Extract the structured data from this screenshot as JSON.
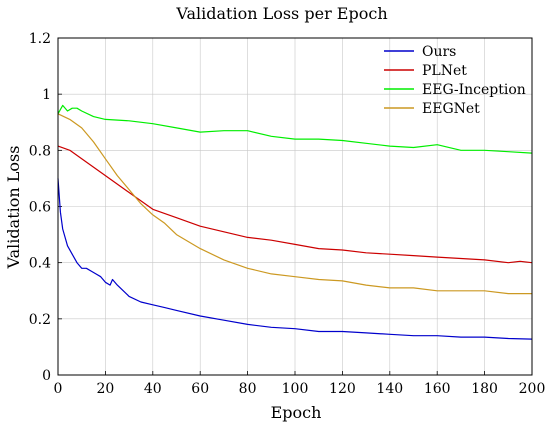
{
  "chart_data": {
    "type": "line",
    "title": "Validation Loss per Epoch",
    "xlabel": "Epoch",
    "ylabel": "Validation Loss",
    "xlim": [
      0,
      200
    ],
    "ylim": [
      0,
      1.2
    ],
    "xticks": [
      "0",
      "20",
      "40",
      "60",
      "80",
      "100",
      "120",
      "140",
      "160",
      "180",
      "200"
    ],
    "yticks": [
      "0",
      "0.2",
      "0.4",
      "0.6",
      "0.8",
      "1",
      "1.2"
    ],
    "grid": true,
    "legend_position": "top-right",
    "series": [
      {
        "name": "Ours",
        "color": "#0000cc",
        "x": [
          0,
          1,
          2,
          4,
          6,
          8,
          10,
          12,
          14,
          16,
          18,
          20,
          22,
          23,
          25,
          30,
          35,
          40,
          45,
          50,
          60,
          70,
          80,
          90,
          100,
          110,
          120,
          130,
          140,
          150,
          160,
          170,
          180,
          190,
          200
        ],
        "y": [
          0.7,
          0.58,
          0.52,
          0.46,
          0.43,
          0.4,
          0.38,
          0.38,
          0.37,
          0.36,
          0.35,
          0.33,
          0.32,
          0.34,
          0.32,
          0.28,
          0.26,
          0.25,
          0.24,
          0.23,
          0.21,
          0.195,
          0.18,
          0.17,
          0.165,
          0.155,
          0.155,
          0.15,
          0.145,
          0.14,
          0.14,
          0.135,
          0.135,
          0.13,
          0.128
        ]
      },
      {
        "name": "PLNet",
        "color": "#cc0000",
        "x": [
          0,
          5,
          10,
          20,
          30,
          40,
          50,
          60,
          70,
          80,
          90,
          100,
          110,
          120,
          130,
          140,
          150,
          160,
          170,
          180,
          190,
          195,
          200
        ],
        "y": [
          0.815,
          0.8,
          0.77,
          0.71,
          0.65,
          0.59,
          0.56,
          0.53,
          0.51,
          0.49,
          0.48,
          0.465,
          0.45,
          0.445,
          0.435,
          0.43,
          0.425,
          0.42,
          0.415,
          0.41,
          0.4,
          0.405,
          0.4
        ]
      },
      {
        "name": "EEG-Inception",
        "color": "#00ee00",
        "x": [
          0,
          2,
          4,
          6,
          8,
          10,
          15,
          20,
          30,
          40,
          50,
          60,
          70,
          80,
          90,
          100,
          110,
          120,
          130,
          140,
          150,
          160,
          170,
          180,
          190,
          200
        ],
        "y": [
          0.93,
          0.96,
          0.94,
          0.95,
          0.95,
          0.94,
          0.92,
          0.91,
          0.905,
          0.895,
          0.88,
          0.865,
          0.87,
          0.87,
          0.85,
          0.84,
          0.84,
          0.835,
          0.825,
          0.815,
          0.81,
          0.82,
          0.8,
          0.8,
          0.795,
          0.79
        ]
      },
      {
        "name": "EEGNet",
        "color": "#cc9922",
        "x": [
          0,
          5,
          10,
          15,
          20,
          25,
          30,
          35,
          40,
          45,
          50,
          60,
          70,
          80,
          90,
          100,
          110,
          120,
          130,
          140,
          150,
          160,
          170,
          180,
          190,
          200
        ],
        "y": [
          0.93,
          0.91,
          0.88,
          0.83,
          0.77,
          0.71,
          0.66,
          0.61,
          0.57,
          0.54,
          0.5,
          0.45,
          0.41,
          0.38,
          0.36,
          0.35,
          0.34,
          0.335,
          0.32,
          0.31,
          0.31,
          0.3,
          0.3,
          0.3,
          0.29,
          0.29
        ]
      }
    ]
  }
}
